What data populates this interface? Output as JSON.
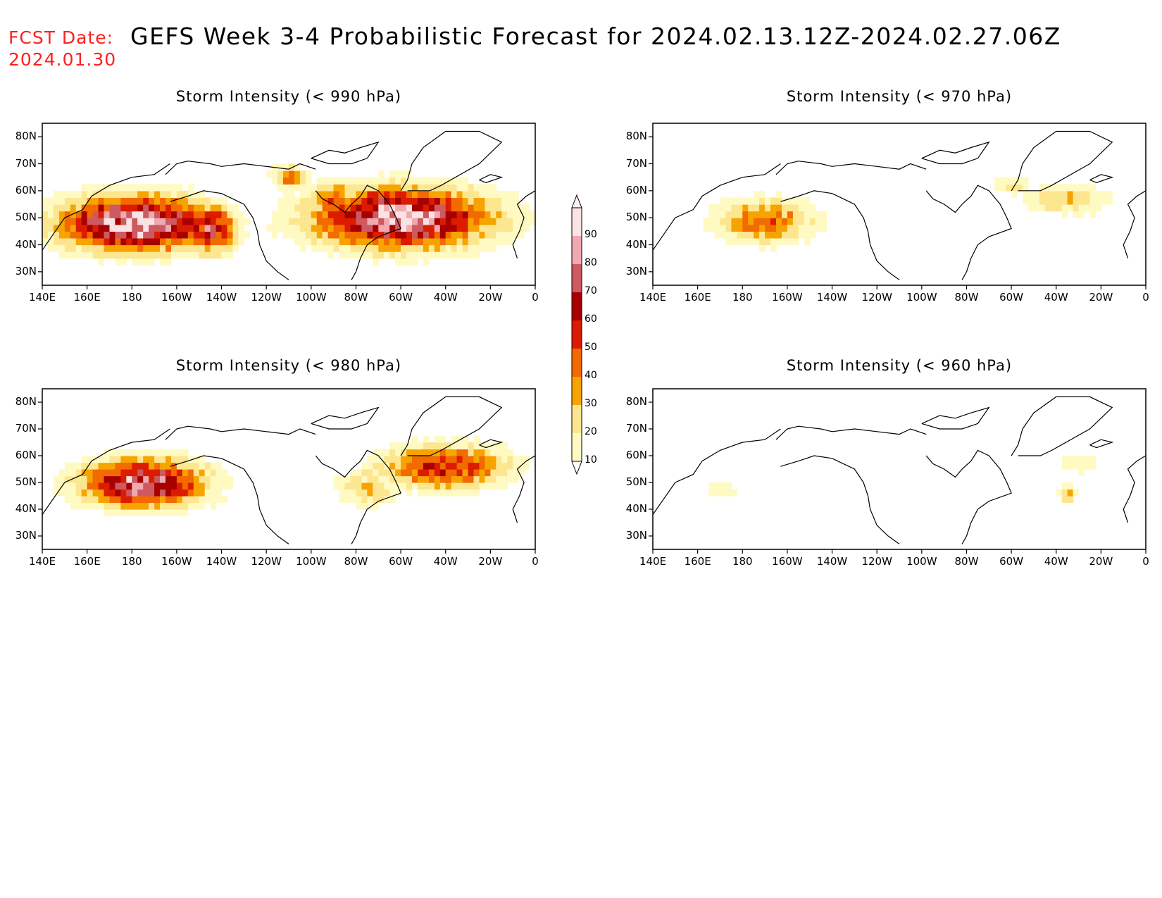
{
  "header": {
    "fcst_label": "FCST Date:",
    "fcst_date": "2024.01.30",
    "title": "GEFS Week 3-4 Probabilistic Forecast for 2024.02.13.12Z-2024.02.27.06Z"
  },
  "axes": {
    "lat_labels": [
      "80N",
      "70N",
      "60N",
      "50N",
      "40N",
      "30N"
    ],
    "lon_labels": [
      "140E",
      "160E",
      "180",
      "160W",
      "140W",
      "120W",
      "100W",
      "80W",
      "60W",
      "40W",
      "20W",
      "0"
    ]
  },
  "panels": [
    {
      "id": "p990",
      "title": "Storm Intensity (< 990 hPa)"
    },
    {
      "id": "p970",
      "title": "Storm Intensity (< 970 hPa)"
    },
    {
      "id": "p980",
      "title": "Storm Intensity (< 980 hPa)"
    },
    {
      "id": "p960",
      "title": "Storm Intensity (< 960 hPa)"
    }
  ],
  "colorbar": {
    "levels": [
      10,
      20,
      30,
      40,
      50,
      60,
      70,
      80,
      90
    ],
    "labels": [
      "10",
      "20",
      "30",
      "40",
      "50",
      "60",
      "70",
      "80",
      "90"
    ],
    "colors": [
      "#fffac2",
      "#fde690",
      "#f7a400",
      "#f26a00",
      "#dc1c00",
      "#a80000",
      "#cc5a60",
      "#eeaab0",
      "#fbe2e4"
    ]
  },
  "icons": [
    "colorbar-triangle-top",
    "colorbar-triangle-bottom"
  ]
}
